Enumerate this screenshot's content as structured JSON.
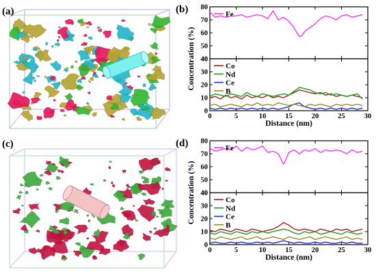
{
  "panels": [
    {
      "label": "(a)",
      "type": "atom-probe-3d-render",
      "phase_colors": [
        "#e5135a",
        "#2fb52f",
        "#1fb6c8",
        "#b5a22e"
      ],
      "cylinder_color": "#7ff0f0"
    },
    {
      "label": "(c)",
      "type": "atom-probe-3d-render",
      "phase_colors": [
        "#c2123f",
        "#3aaa3a"
      ],
      "cylinder_color": "#f4c4c4"
    }
  ],
  "chart_data": [
    {
      "panel_label": "(b)",
      "type": "line",
      "xlabel": "Distance (nm)",
      "ylabel": "Concentration (%)",
      "xlim": [
        0,
        30
      ],
      "xticks": [
        "0",
        "5",
        "10",
        "15",
        "20",
        "25",
        "30"
      ],
      "upper": {
        "ylim": [
          40,
          80
        ],
        "yticks": [
          "40",
          "50",
          "60",
          "70",
          "80"
        ],
        "legend_position": "top-left",
        "series": [
          {
            "name": "Fe",
            "color": "#ff33ff",
            "x": [
              0,
              1,
              2,
              3,
              4,
              5,
              6,
              7,
              8,
              9,
              10,
              11,
              12,
              13,
              14,
              15,
              16,
              16.5,
              17,
              17.5,
              18,
              19,
              20,
              21,
              22,
              23,
              24,
              25,
              26,
              27,
              28,
              29
            ],
            "y": [
              76,
              72,
              73,
              72,
              73,
              73,
              74,
              72,
              73,
              74,
              73,
              71,
              77,
              70,
              72,
              69,
              64,
              60,
              57,
              58,
              61,
              64,
              67,
              71,
              73,
              72,
              70,
              73,
              74,
              72,
              73,
              74
            ]
          }
        ]
      },
      "lower": {
        "ylim": [
          0,
          40
        ],
        "yticks": [
          "0",
          "10",
          "20",
          "30",
          "40"
        ],
        "legend_position": "top-left",
        "series": [
          {
            "name": "Co",
            "color": "#b01a1a",
            "x": [
              0,
              1,
              2,
              3,
              4,
              5,
              6,
              7,
              8,
              9,
              10,
              11,
              12,
              13,
              14,
              15,
              16,
              17,
              18,
              19,
              20,
              21,
              22,
              23,
              24,
              25,
              26,
              27,
              28,
              29
            ],
            "y": [
              10,
              11,
              9,
              12,
              10,
              11,
              9,
              12,
              10,
              11,
              10,
              12,
              10,
              11,
              10,
              12,
              14,
              16,
              15,
              14,
              13,
              14,
              12,
              13,
              11,
              12,
              11,
              12,
              11,
              10
            ]
          },
          {
            "name": "Nd",
            "color": "#1e9a1e",
            "x": [
              0,
              1,
              2,
              3,
              4,
              5,
              6,
              7,
              8,
              9,
              10,
              11,
              12,
              13,
              14,
              15,
              16,
              17,
              18,
              19,
              20,
              21,
              22,
              23,
              24,
              25,
              26,
              27,
              28,
              29
            ],
            "y": [
              11,
              13,
              12,
              11,
              13,
              12,
              11,
              14,
              12,
              11,
              13,
              12,
              11,
              12,
              13,
              12,
              15,
              18,
              17,
              16,
              14,
              13,
              14,
              12,
              13,
              12,
              11,
              12,
              13,
              9
            ]
          },
          {
            "name": "Ce",
            "color": "#1c2fd6",
            "x": [
              0,
              1,
              2,
              3,
              4,
              5,
              6,
              7,
              8,
              9,
              10,
              11,
              12,
              13,
              14,
              15,
              16,
              17,
              18,
              19,
              20,
              21,
              22,
              23,
              24,
              25,
              26,
              27,
              28,
              29
            ],
            "y": [
              2,
              1,
              2,
              1,
              2,
              1,
              2,
              1,
              2,
              1,
              2,
              1,
              2,
              1,
              2,
              3,
              5,
              6,
              3,
              2,
              1,
              2,
              1,
              2,
              1,
              2,
              1,
              2,
              1,
              2
            ]
          },
          {
            "name": "B",
            "color": "#9a8a1c",
            "x": [
              0,
              1,
              2,
              3,
              4,
              5,
              6,
              7,
              8,
              9,
              10,
              11,
              12,
              13,
              14,
              15,
              16,
              17,
              18,
              19,
              20,
              21,
              22,
              23,
              24,
              25,
              26,
              27,
              28,
              29
            ],
            "y": [
              4,
              5,
              3,
              4,
              5,
              4,
              3,
              5,
              4,
              6,
              4,
              5,
              4,
              6,
              5,
              4,
              5,
              4,
              3,
              5,
              4,
              5,
              4,
              3,
              5,
              4,
              5,
              4,
              5,
              4
            ]
          }
        ]
      }
    },
    {
      "panel_label": "(d)",
      "type": "line",
      "xlabel": "Distance (nm)",
      "ylabel": "Concentration (%)",
      "xlim": [
        0,
        30
      ],
      "xticks": [
        "0",
        "5",
        "10",
        "15",
        "20",
        "25",
        "30"
      ],
      "upper": {
        "ylim": [
          40,
          80
        ],
        "yticks": [
          "40",
          "50",
          "60",
          "70",
          "80"
        ],
        "legend_position": "top-left",
        "series": [
          {
            "name": "Fe",
            "color": "#ff33ff",
            "x": [
              0,
              1,
              2,
              3,
              4,
              5,
              6,
              7,
              8,
              9,
              10,
              11,
              12,
              13,
              13.5,
              14,
              14.5,
              15,
              16,
              17,
              18,
              19,
              20,
              21,
              22,
              23,
              24,
              25,
              26,
              27,
              28,
              29
            ],
            "y": [
              74,
              72,
              73,
              74,
              73,
              76,
              72,
              75,
              73,
              74,
              76,
              71,
              72,
              70,
              66,
              62,
              66,
              71,
              73,
              70,
              73,
              72,
              74,
              71,
              73,
              72,
              73,
              72,
              70,
              73,
              71,
              72
            ]
          }
        ]
      },
      "lower": {
        "ylim": [
          0,
          40
        ],
        "yticks": [
          "0",
          "10",
          "20",
          "30",
          "40"
        ],
        "legend_position": "top-left",
        "series": [
          {
            "name": "Co",
            "color": "#b01a1a",
            "x": [
              0,
              1,
              2,
              3,
              4,
              5,
              6,
              7,
              8,
              9,
              10,
              11,
              12,
              13,
              14,
              15,
              16,
              17,
              18,
              19,
              20,
              21,
              22,
              23,
              24,
              25,
              26,
              27,
              28,
              29
            ],
            "y": [
              11,
              10,
              12,
              11,
              10,
              12,
              11,
              10,
              12,
              11,
              10,
              11,
              12,
              14,
              17,
              15,
              12,
              11,
              12,
              11,
              10,
              12,
              11,
              10,
              12,
              11,
              12,
              10,
              11,
              12
            ]
          },
          {
            "name": "Nd",
            "color": "#1e9a1e",
            "x": [
              0,
              1,
              2,
              3,
              4,
              5,
              6,
              7,
              8,
              9,
              10,
              11,
              12,
              13,
              14,
              15,
              16,
              17,
              18,
              19,
              20,
              21,
              22,
              23,
              24,
              25,
              26,
              27,
              28,
              29
            ],
            "y": [
              9,
              8,
              10,
              9,
              8,
              10,
              9,
              8,
              10,
              9,
              10,
              9,
              10,
              11,
              12,
              11,
              9,
              8,
              10,
              9,
              10,
              8,
              9,
              10,
              9,
              8,
              10,
              9,
              8,
              9
            ]
          },
          {
            "name": "Ce",
            "color": "#1c2fd6",
            "x": [
              0,
              1,
              2,
              3,
              4,
              5,
              6,
              7,
              8,
              9,
              10,
              11,
              12,
              13,
              14,
              15,
              16,
              17,
              18,
              19,
              20,
              21,
              22,
              23,
              24,
              25,
              26,
              27,
              28,
              29
            ],
            "y": [
              1,
              2,
              1,
              1,
              2,
              1,
              2,
              1,
              1,
              2,
              1,
              2,
              1,
              2,
              3,
              2,
              1,
              2,
              1,
              1,
              2,
              1,
              2,
              1,
              1,
              2,
              1,
              2,
              1,
              1
            ]
          },
          {
            "name": "B",
            "color": "#9a8a1c",
            "x": [
              0,
              1,
              2,
              3,
              4,
              5,
              6,
              7,
              8,
              9,
              10,
              11,
              12,
              13,
              14,
              15,
              16,
              17,
              18,
              19,
              20,
              21,
              22,
              23,
              24,
              25,
              26,
              27,
              28,
              29
            ],
            "y": [
              5,
              4,
              6,
              5,
              4,
              5,
              6,
              4,
              5,
              6,
              4,
              5,
              6,
              5,
              4,
              6,
              5,
              4,
              5,
              6,
              4,
              5,
              6,
              5,
              4,
              5,
              6,
              4,
              5,
              4
            ]
          }
        ]
      }
    }
  ]
}
